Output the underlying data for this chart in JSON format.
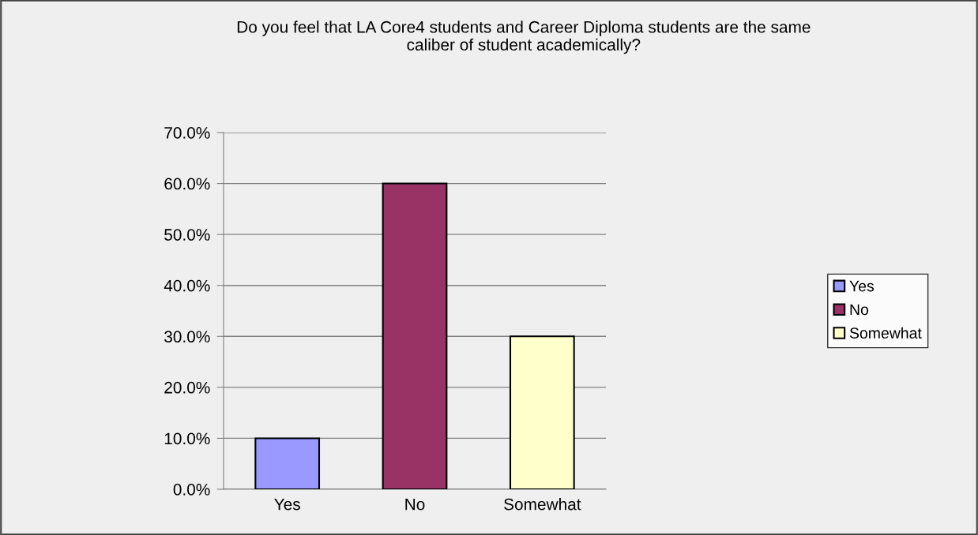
{
  "chart_data": {
    "type": "bar",
    "title": "Do you feel that LA Core4 students and Career Diploma students are the same\ncaliber of student academically?",
    "categories": [
      "Yes",
      "No",
      "Somewhat"
    ],
    "series": [
      {
        "name": "Yes",
        "color": "#9999ff",
        "values": [
          10,
          null,
          null
        ]
      },
      {
        "name": "No",
        "color": "#993366",
        "values": [
          null,
          60,
          null
        ]
      },
      {
        "name": "Somewhat",
        "color": "#ffffcc",
        "values": [
          null,
          null,
          30
        ]
      }
    ],
    "ylim": [
      0,
      70
    ],
    "yticks": [
      {
        "value": 0,
        "label": "0.0%"
      },
      {
        "value": 10,
        "label": "10.0%"
      },
      {
        "value": 20,
        "label": "20.0%"
      },
      {
        "value": 30,
        "label": "30.0%"
      },
      {
        "value": 40,
        "label": "40.0%"
      },
      {
        "value": 50,
        "label": "50.0%"
      },
      {
        "value": 60,
        "label": "60.0%"
      },
      {
        "value": 70,
        "label": "70.0%"
      }
    ],
    "grid": "y",
    "legend": "right"
  }
}
